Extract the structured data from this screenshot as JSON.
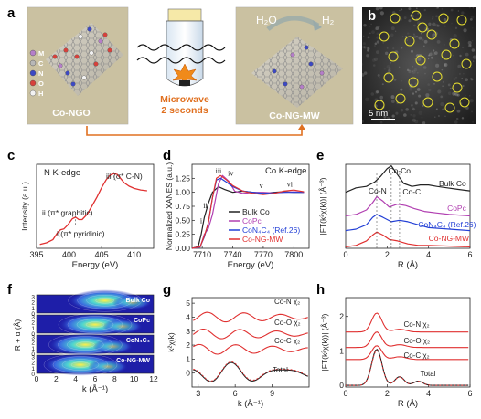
{
  "panels": {
    "a": {
      "letter": "a",
      "left_label": "Co-NGO",
      "right_label": "Co-NG-MW",
      "arrow_label_line1": "Microwave",
      "arrow_label_line2": "2 seconds",
      "reaction_left": "H₂O",
      "reaction_right": "H₂",
      "legend": [
        "M",
        "C",
        "N",
        "O",
        "H"
      ],
      "legend_colors": [
        "#b57ec9",
        "#b7b7b7",
        "#3d49c4",
        "#d7413b",
        "#f2f2f2"
      ]
    },
    "b": {
      "letter": "b",
      "scale_label": "5 nm"
    },
    "c": {
      "letter": "c"
    },
    "d": {
      "letter": "d"
    },
    "e": {
      "letter": "e"
    },
    "f": {
      "letter": "f"
    },
    "g": {
      "letter": "g"
    },
    "h": {
      "letter": "h"
    }
  },
  "chart_data": [
    {
      "panel": "c",
      "type": "line",
      "title": "N K-edge",
      "xlabel": "Energy (eV)",
      "ylabel": "Intensity (a.u.)",
      "xlim": [
        395,
        413
      ],
      "xticks": [
        "395",
        "400",
        "405",
        "410"
      ],
      "series": [
        {
          "color": "#e03030",
          "x": [
            395.5,
            396.5,
            397.5,
            398.2,
            398.7,
            399.2,
            399.8,
            400.5,
            401.0,
            401.5,
            402.0,
            402.8,
            403.5,
            404.3,
            405.0,
            405.7,
            406.3,
            406.9,
            407.4,
            407.9,
            408.5,
            409.2,
            410.0,
            411.0,
            412.0
          ],
          "y": [
            0.05,
            0.07,
            0.11,
            0.2,
            0.24,
            0.25,
            0.3,
            0.38,
            0.4,
            0.37,
            0.37,
            0.44,
            0.54,
            0.66,
            0.78,
            0.88,
            0.94,
            0.96,
            0.95,
            0.9,
            0.84,
            0.8,
            0.77,
            0.75,
            0.74
          ]
        }
      ],
      "annotations": [
        "iii (σ* C-N)",
        "ii (π* graphitic)",
        "i (π* pyridinic)"
      ]
    },
    {
      "panel": "d",
      "type": "line",
      "title": "Co K-edge",
      "xlabel": "Energy (eV)",
      "ylabel": "Normalized XANES (a.u.)",
      "xlim": [
        7700,
        7815
      ],
      "ylim": [
        0,
        1.5
      ],
      "xticks": [
        "7710",
        "7740",
        "7770",
        "7800"
      ],
      "yticks": [
        "0.00",
        "0.25",
        "0.50",
        "0.75",
        "1.00",
        "1.25"
      ],
      "peak_labels": [
        "i",
        "ii",
        "iii",
        "iv",
        "v",
        "vi"
      ],
      "legend": [
        "Bulk Co",
        "CoPc",
        "CoN₄C₄ (Ref.26)",
        "Co-NG-MW"
      ],
      "series": [
        {
          "name": "Bulk Co",
          "color": "#222222",
          "x": [
            7700,
            7706,
            7709,
            7712,
            7716,
            7720,
            7726,
            7732,
            7740,
            7750,
            7760,
            7770,
            7780,
            7790,
            7800,
            7810
          ],
          "y": [
            0.0,
            0.03,
            0.25,
            0.55,
            0.8,
            1.0,
            1.1,
            1.05,
            1.0,
            1.02,
            1.0,
            0.98,
            1.0,
            1.01,
            1.0,
            1.0
          ]
        },
        {
          "name": "CoPc",
          "color": "#b13fb1",
          "x": [
            7700,
            7708,
            7712,
            7716,
            7720,
            7726,
            7730,
            7736,
            7742,
            7750,
            7760,
            7770,
            7780,
            7790,
            7800,
            7810
          ],
          "y": [
            0.0,
            0.02,
            0.25,
            0.35,
            0.6,
            1.15,
            1.3,
            1.2,
            1.02,
            0.98,
            1.0,
            1.0,
            0.99,
            1.0,
            1.01,
            1.0
          ]
        },
        {
          "name": "CoN₄C₄ (Ref.26)",
          "color": "#2340d6",
          "x": [
            7700,
            7708,
            7712,
            7716,
            7720,
            7724,
            7728,
            7734,
            7740,
            7750,
            7760,
            7770,
            7780,
            7790,
            7800,
            7810
          ],
          "y": [
            0.0,
            0.03,
            0.2,
            0.45,
            0.9,
            1.22,
            1.25,
            1.18,
            1.1,
            1.02,
            1.0,
            0.98,
            0.99,
            1.0,
            1.0,
            1.0
          ]
        },
        {
          "name": "Co-NG-MW",
          "color": "#e03030",
          "x": [
            7700,
            7708,
            7712,
            7716,
            7720,
            7724,
            7728,
            7734,
            7740,
            7750,
            7760,
            7770,
            7780,
            7790,
            7800,
            7810
          ],
          "y": [
            0.0,
            0.03,
            0.22,
            0.45,
            0.9,
            1.25,
            1.3,
            1.22,
            1.12,
            1.02,
            0.98,
            0.96,
            0.98,
            1.02,
            1.04,
            1.01
          ]
        }
      ]
    },
    {
      "panel": "e",
      "type": "line",
      "xlabel": "R (Å)",
      "ylabel": "|FT(k²χ(k))| (Å⁻³)",
      "xlim": [
        0,
        6
      ],
      "xticks": [
        "0",
        "2",
        "4",
        "6"
      ],
      "annotations": [
        "Co-N",
        "Co-Co",
        "Co-C"
      ],
      "legend": [
        "Bulk Co",
        "CoPc",
        "CoN₄C₄ (Ref.26)",
        "Co-NG-MW"
      ],
      "series": [
        {
          "name": "Bulk Co",
          "color": "#222222",
          "x": [
            0,
            0.5,
            1.0,
            1.4,
            1.7,
            2.0,
            2.2,
            2.5,
            2.8,
            3.2,
            3.6,
            4.0,
            4.4,
            4.9,
            5.4,
            6.0
          ],
          "y": [
            0.5,
            0.8,
            0.9,
            1.2,
            1.6,
            2.1,
            2.3,
            1.7,
            1.1,
            0.9,
            1.0,
            1.0,
            0.9,
            0.8,
            0.7,
            0.6
          ]
        },
        {
          "name": "CoPc",
          "color": "#b13fb1",
          "x": [
            0,
            0.5,
            1.0,
            1.3,
            1.5,
            1.8,
            2.1,
            2.5,
            2.9,
            3.3,
            3.8,
            4.4,
            5.0,
            6.0
          ],
          "y": [
            0.0,
            0.1,
            0.4,
            0.9,
            1.3,
            1.0,
            0.6,
            0.8,
            0.7,
            0.5,
            0.3,
            0.2,
            0.1,
            0.0
          ]
        },
        {
          "name": "CoN₄C₄ (Ref.26)",
          "color": "#2340d6",
          "x": [
            0,
            0.5,
            1.0,
            1.3,
            1.5,
            1.8,
            2.2,
            2.6,
            3.0,
            3.5,
            4.0,
            5.0,
            6.0
          ],
          "y": [
            0.0,
            0.1,
            0.4,
            0.9,
            1.1,
            0.9,
            0.6,
            0.7,
            0.6,
            0.4,
            0.2,
            0.1,
            0.0
          ]
        },
        {
          "name": "Co-NG-MW",
          "color": "#e03030",
          "x": [
            0,
            0.5,
            1.0,
            1.3,
            1.5,
            1.8,
            2.1,
            2.5,
            3.0,
            3.5,
            4.0,
            5.0,
            6.0
          ],
          "y": [
            0.0,
            0.1,
            0.4,
            0.8,
            1.0,
            0.8,
            0.5,
            0.4,
            0.2,
            0.1,
            0.1,
            0.05,
            0.0
          ]
        }
      ]
    },
    {
      "panel": "f",
      "type": "heatmap",
      "xlabel": "k (Å⁻¹)",
      "ylabel": "R + α (Å)",
      "xlim": [
        0,
        12
      ],
      "xticks": [
        "0",
        "2",
        "4",
        "6",
        "8",
        "10",
        "12"
      ],
      "yticks": [
        "0",
        "1",
        "2",
        "3"
      ],
      "maps": [
        {
          "name": "Bulk Co",
          "peak_k": 7,
          "peak_r": 2.2
        },
        {
          "name": "CoPc",
          "peak_k": 6,
          "peak_r": 1.5
        },
        {
          "name": "CoN₄C₄",
          "peak_k": 5,
          "peak_r": 1.5
        },
        {
          "name": "Co-NG-MW",
          "peak_k": 4.5,
          "peak_r": 1.5
        }
      ]
    },
    {
      "panel": "g",
      "type": "line",
      "xlabel": "k (Å⁻¹)",
      "ylabel": "k²χ(k)",
      "xlim": [
        2.5,
        12
      ],
      "xticks": [
        "3",
        "6",
        "9"
      ],
      "yticks": [
        "0",
        "1",
        "2",
        "3",
        "4",
        "5"
      ],
      "series_labels": [
        "Co-N χ₂",
        "Co-O χ₂",
        "Co-C χ₂",
        "Total"
      ],
      "series": [
        {
          "name": "Co-N",
          "color": "#e03030",
          "offset": 4.0,
          "amp": 0.35
        },
        {
          "name": "Co-O",
          "color": "#e03030",
          "offset": 2.8,
          "amp": 0.35
        },
        {
          "name": "Co-C",
          "color": "#e03030",
          "offset": 1.7,
          "amp": 0.35
        },
        {
          "name": "Total",
          "color": "#222222",
          "offset": 0.0,
          "amp": 0.45
        }
      ]
    },
    {
      "panel": "h",
      "type": "line",
      "xlabel": "R (Å)",
      "ylabel": "|FT(k²χ(k))| (Å⁻³)",
      "xlim": [
        0,
        6
      ],
      "xticks": [
        "0",
        "2",
        "4",
        "6"
      ],
      "yticks": [
        "0",
        "1",
        "2"
      ],
      "series_labels": [
        "Co-N χ₂",
        "Co-O χ₂",
        "Co-C χ₂",
        "Total"
      ],
      "series": [
        {
          "name": "Co-N",
          "color": "#e03030",
          "offset": 1.55,
          "peak": 0.55
        },
        {
          "name": "Co-O",
          "color": "#e03030",
          "offset": 1.1,
          "peak": 0.45
        },
        {
          "name": "Co-C",
          "color": "#e03030",
          "offset": 0.75,
          "peak": 0.4
        },
        {
          "name": "Total",
          "color": "#222222",
          "offset": 0.0,
          "peak": 1.05
        }
      ]
    }
  ]
}
